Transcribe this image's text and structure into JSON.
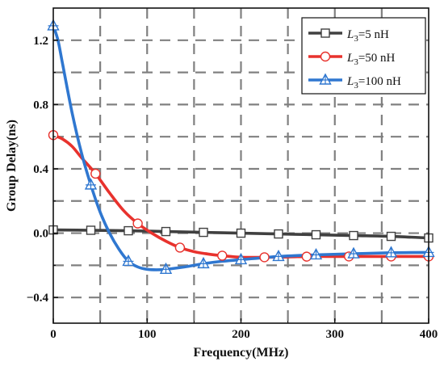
{
  "chart_data": {
    "type": "line",
    "xlabel": "Frequency(MHz)",
    "ylabel": "Group Delay(ns)",
    "xlim": [
      0,
      400
    ],
    "ylim": [
      -0.56,
      1.4
    ],
    "xticks": [
      "0",
      "100",
      "200",
      "300",
      "400"
    ],
    "xtick_values": [
      0,
      100,
      200,
      300,
      400
    ],
    "yticks": [
      "−0.4",
      "0.0",
      "0.4",
      "0.8",
      "1.2"
    ],
    "ytick_values": [
      -0.4,
      0,
      0.4,
      0.8,
      1.2
    ],
    "grid": true,
    "grid_style": "dashed",
    "legend_position": "top-right",
    "series": [
      {
        "legend": {
          "sym": "L",
          "sub": "3",
          "rest": "=5 nH"
        },
        "color": "#404040",
        "marker": "square",
        "x": [
          0,
          40,
          80,
          120,
          160,
          200,
          240,
          280,
          320,
          360,
          400
        ],
        "y": [
          0.02,
          0.018,
          0.015,
          0.01,
          0.005,
          0.0,
          -0.005,
          -0.01,
          -0.015,
          -0.02,
          -0.03
        ],
        "marker_x": [
          0,
          40,
          80,
          120,
          160,
          200,
          240,
          280,
          320,
          360,
          400
        ],
        "marker_y": [
          0.02,
          0.018,
          0.015,
          0.01,
          0.005,
          0.0,
          -0.005,
          -0.01,
          -0.015,
          -0.02,
          -0.03
        ]
      },
      {
        "legend": {
          "sym": "L",
          "sub": "3",
          "rest": "=50 nH"
        },
        "color": "#e8322d",
        "marker": "circle",
        "x": [
          0,
          10,
          20,
          30,
          45,
          60,
          75,
          90,
          105,
          120,
          135,
          150,
          165,
          180,
          200,
          225,
          250,
          275,
          300,
          325,
          350,
          375,
          400
        ],
        "y": [
          0.61,
          0.585,
          0.54,
          0.47,
          0.37,
          0.25,
          0.14,
          0.06,
          0.0,
          -0.05,
          -0.09,
          -0.115,
          -0.13,
          -0.14,
          -0.15,
          -0.15,
          -0.148,
          -0.145,
          -0.145,
          -0.145,
          -0.145,
          -0.145,
          -0.145
        ],
        "marker_x": [
          0,
          45,
          90,
          135,
          180,
          225,
          270,
          315,
          360,
          400
        ],
        "marker_y": [
          0.61,
          0.37,
          0.06,
          -0.09,
          -0.14,
          -0.15,
          -0.146,
          -0.145,
          -0.145,
          -0.145
        ]
      },
      {
        "legend": {
          "sym": "L",
          "sub": "3",
          "rest": "=100 nH"
        },
        "color": "#2f77d0",
        "marker": "triangle",
        "x": [
          0,
          5,
          10,
          20,
          30,
          40,
          50,
          60,
          70,
          80,
          90,
          100,
          110,
          120,
          140,
          160,
          180,
          200,
          240,
          280,
          320,
          360,
          400
        ],
        "y": [
          1.29,
          1.2,
          1.05,
          0.75,
          0.5,
          0.3,
          0.13,
          0.0,
          -0.1,
          -0.175,
          -0.21,
          -0.225,
          -0.228,
          -0.225,
          -0.21,
          -0.19,
          -0.175,
          -0.165,
          -0.145,
          -0.135,
          -0.128,
          -0.122,
          -0.12
        ],
        "marker_x": [
          0,
          40,
          80,
          120,
          160,
          200,
          240,
          280,
          320,
          360,
          400
        ],
        "marker_y": [
          1.29,
          0.3,
          -0.175,
          -0.225,
          -0.19,
          -0.165,
          -0.145,
          -0.135,
          -0.128,
          -0.122,
          -0.12
        ]
      }
    ]
  }
}
